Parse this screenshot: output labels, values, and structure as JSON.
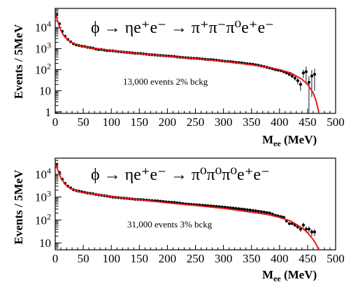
{
  "chart_data": [
    {
      "type": "scatter",
      "title": "ϕ → ηe⁺e⁻ → π⁺π⁻π⁰e⁺e⁻",
      "annotation": "13,000 events    2% bckg",
      "xlabel": "M",
      "xlabel_sub": "ee",
      "xlabel_unit": " (MeV)",
      "ylabel": "Events / 5MeV",
      "xlim": [
        0,
        500
      ],
      "ylim": [
        0.85,
        80000
      ],
      "yscale": "log",
      "grid": false,
      "x_ticks": [
        "0",
        "50",
        "100",
        "150",
        "200",
        "250",
        "300",
        "350",
        "400",
        "450",
        "500"
      ],
      "y_ticks": [
        "1",
        "10",
        "10^2",
        "10^3",
        "10^4"
      ],
      "series": [
        {
          "kind": "points",
          "color": "#000000",
          "x": [
            2.5,
            7.5,
            12.5,
            17.5,
            22.5,
            27.5,
            32.5,
            37.5,
            42.5,
            47.5,
            52.5,
            57.5,
            62.5,
            67.5,
            72.5,
            77.5,
            82.5,
            87.5,
            92.5,
            97.5,
            102.5,
            107.5,
            112.5,
            117.5,
            122.5,
            127.5,
            132.5,
            137.5,
            142.5,
            147.5,
            152.5,
            157.5,
            162.5,
            167.5,
            172.5,
            177.5,
            182.5,
            187.5,
            192.5,
            197.5,
            202.5,
            207.5,
            212.5,
            217.5,
            222.5,
            227.5,
            232.5,
            237.5,
            242.5,
            247.5,
            252.5,
            257.5,
            262.5,
            267.5,
            272.5,
            277.5,
            282.5,
            287.5,
            292.5,
            297.5,
            302.5,
            307.5,
            312.5,
            317.5,
            322.5,
            327.5,
            332.5,
            337.5,
            342.5,
            347.5,
            352.5,
            357.5,
            362.5,
            367.5,
            372.5,
            377.5,
            382.5,
            387.5,
            392.5,
            397.5,
            402.5,
            407.5,
            412.5,
            417.5,
            422.5,
            427.5,
            432.5,
            437.5,
            442.5,
            447.5,
            452.5,
            457.5,
            462.5
          ],
          "y": [
            40000,
            15000,
            6500,
            3800,
            2700,
            2100,
            1700,
            1500,
            1400,
            1300,
            1250,
            1150,
            1100,
            1050,
            950,
            900,
            900,
            850,
            800,
            800,
            780,
            750,
            720,
            700,
            680,
            660,
            640,
            620,
            600,
            590,
            580,
            560,
            540,
            520,
            510,
            500,
            480,
            470,
            460,
            450,
            440,
            430,
            420,
            400,
            390,
            380,
            370,
            360,
            350,
            345,
            340,
            330,
            320,
            310,
            300,
            300,
            290,
            280,
            270,
            260,
            250,
            245,
            240,
            230,
            220,
            215,
            210,
            200,
            190,
            185,
            180,
            170,
            160,
            150,
            140,
            130,
            120,
            110,
            100,
            95,
            90,
            80,
            70,
            60,
            50,
            40,
            30,
            20,
            70,
            80,
            25,
            50,
            60
          ],
          "yerr": [
            300,
            150,
            90,
            70,
            60,
            50,
            45,
            42,
            40,
            38,
            37,
            36,
            35,
            34,
            33,
            32,
            32,
            31,
            30,
            30,
            30,
            29,
            29,
            28,
            28,
            28,
            27,
            27,
            26,
            26,
            26,
            26,
            25,
            25,
            25,
            24,
            24,
            24,
            24,
            23,
            23,
            23,
            22,
            22,
            22,
            22,
            21,
            21,
            21,
            21,
            20,
            20,
            20,
            20,
            19,
            19,
            19,
            19,
            18,
            18,
            18,
            18,
            17,
            17,
            17,
            17,
            16,
            16,
            16,
            16,
            15,
            15,
            14,
            14,
            13,
            13,
            12,
            12,
            11,
            11,
            10,
            10,
            10,
            10,
            10,
            10,
            10,
            10,
            30,
            60,
            25,
            45,
            50
          ]
        },
        {
          "kind": "fit",
          "color": "#e41a1c",
          "x": [
            1,
            5,
            10,
            15,
            20,
            25,
            30,
            40,
            50,
            60,
            80,
            100,
            130,
            160,
            200,
            250,
            300,
            350,
            380,
            400,
            420,
            440,
            450,
            460,
            465,
            470
          ],
          "y": [
            42000,
            17000,
            7200,
            4200,
            3000,
            2300,
            1900,
            1500,
            1250,
            1100,
            950,
            800,
            650,
            540,
            430,
            330,
            250,
            170,
            130,
            100,
            70,
            35,
            20,
            8,
            3.5,
            1
          ]
        }
      ]
    },
    {
      "type": "scatter",
      "title": "ϕ → ηe⁺e⁻ → π⁰π⁰π⁰e⁺e⁻",
      "annotation": "31,000 events  3% bckg",
      "xlabel": "M",
      "xlabel_sub": "ee",
      "xlabel_unit": " (MeV)",
      "ylabel": "Events / 5MeV",
      "xlim": [
        0,
        500
      ],
      "ylim": [
        5,
        50000
      ],
      "yscale": "log",
      "grid": false,
      "x_ticks": [
        "0",
        "50",
        "100",
        "150",
        "200",
        "250",
        "300",
        "350",
        "400",
        "450",
        "500"
      ],
      "y_ticks": [
        "10",
        "10^2",
        "10^3",
        "10^4"
      ],
      "series": [
        {
          "kind": "points",
          "color": "#000000",
          "x": [
            2.5,
            7.5,
            12.5,
            17.5,
            22.5,
            27.5,
            32.5,
            37.5,
            42.5,
            47.5,
            52.5,
            57.5,
            62.5,
            67.5,
            72.5,
            77.5,
            82.5,
            87.5,
            92.5,
            97.5,
            102.5,
            107.5,
            112.5,
            117.5,
            122.5,
            127.5,
            132.5,
            137.5,
            142.5,
            147.5,
            152.5,
            157.5,
            162.5,
            167.5,
            172.5,
            177.5,
            182.5,
            187.5,
            192.5,
            197.5,
            202.5,
            207.5,
            212.5,
            217.5,
            222.5,
            227.5,
            232.5,
            237.5,
            242.5,
            247.5,
            252.5,
            257.5,
            262.5,
            267.5,
            272.5,
            277.5,
            282.5,
            287.5,
            292.5,
            297.5,
            302.5,
            307.5,
            312.5,
            317.5,
            322.5,
            327.5,
            332.5,
            337.5,
            342.5,
            347.5,
            352.5,
            357.5,
            362.5,
            367.5,
            372.5,
            377.5,
            382.5,
            387.5,
            392.5,
            397.5,
            402.5,
            407.5,
            412.5,
            417.5,
            422.5,
            427.5,
            432.5,
            437.5,
            442.5,
            447.5,
            452.5,
            457.5,
            462.5
          ],
          "y": [
            25000,
            12000,
            6000,
            4000,
            3000,
            2500,
            2100,
            1900,
            1800,
            1700,
            1600,
            1500,
            1450,
            1400,
            1300,
            1250,
            1200,
            1150,
            1100,
            1050,
            1000,
            980,
            950,
            920,
            900,
            880,
            850,
            830,
            800,
            790,
            780,
            760,
            740,
            720,
            700,
            690,
            680,
            660,
            640,
            620,
            600,
            590,
            580,
            560,
            540,
            520,
            500,
            490,
            480,
            470,
            460,
            450,
            440,
            430,
            420,
            410,
            400,
            390,
            380,
            370,
            360,
            350,
            340,
            330,
            320,
            310,
            300,
            290,
            280,
            270,
            260,
            250,
            240,
            230,
            220,
            210,
            200,
            180,
            160,
            150,
            140,
            130,
            90,
            70,
            70,
            60,
            50,
            40,
            60,
            40,
            40,
            30,
            30
          ],
          "yerr": [
            200,
            130,
            90,
            70,
            60,
            55,
            50,
            48,
            46,
            45,
            44,
            43,
            42,
            41,
            40,
            39,
            38,
            37,
            36,
            35,
            34,
            34,
            33,
            33,
            32,
            32,
            31,
            31,
            30,
            30,
            30,
            29,
            29,
            28,
            28,
            28,
            27,
            27,
            27,
            26,
            26,
            26,
            25,
            25,
            25,
            24,
            24,
            24,
            23,
            23,
            23,
            22,
            22,
            22,
            22,
            21,
            21,
            21,
            20,
            20,
            20,
            19,
            19,
            19,
            18,
            18,
            18,
            17,
            17,
            17,
            16,
            16,
            16,
            15,
            15,
            15,
            14,
            14,
            13,
            13,
            12,
            12,
            10,
            10,
            10,
            10,
            10,
            10,
            15,
            12,
            12,
            10,
            10
          ]
        },
        {
          "kind": "fit",
          "color": "#e41a1c",
          "x": [
            1,
            5,
            10,
            15,
            20,
            25,
            30,
            40,
            50,
            60,
            80,
            100,
            130,
            160,
            200,
            250,
            300,
            350,
            380,
            400,
            420,
            440,
            450,
            460,
            465,
            470
          ],
          "y": [
            27000,
            14000,
            7000,
            4500,
            3200,
            2600,
            2200,
            1800,
            1600,
            1450,
            1250,
            1050,
            870,
            720,
            560,
            430,
            320,
            220,
            170,
            130,
            90,
            45,
            28,
            14,
            9,
            5
          ]
        }
      ]
    }
  ]
}
